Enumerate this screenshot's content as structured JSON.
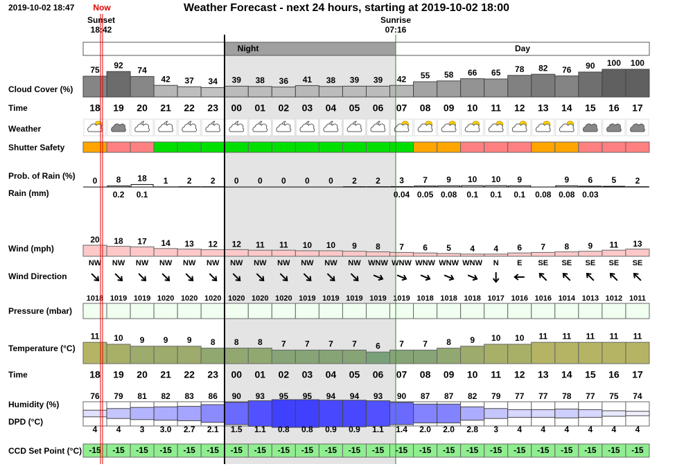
{
  "header": {
    "timestamp": "2019-10-02 18:47",
    "now": "Now",
    "sunset_label": "Sunset",
    "sunset_time": "18:42",
    "title": "Weather Forecast - next 24 hours, starting at 2019-10-02 18:00",
    "sunrise_label": "Sunrise",
    "sunrise_time": "07:16",
    "night": "Night",
    "day": "Day"
  },
  "row_labels": {
    "cloud_cover": "Cloud Cover (%)",
    "time": "Time",
    "weather": "Weather",
    "shutter": "Shutter Safety",
    "rain_prob": "Prob. of Rain (%)",
    "rain_mm": "Rain (mm)",
    "wind": "Wind (mph)",
    "wind_dir": "Wind Direction",
    "pressure": "Pressure (mbar)",
    "temperature": "Temperature (°C)",
    "humidity": "Humidity (%)",
    "dpd": "DPD (°C)",
    "ccd": "CCD Set Point (°C)"
  },
  "hours": [
    "18",
    "19",
    "20",
    "21",
    "22",
    "23",
    "00",
    "01",
    "02",
    "03",
    "04",
    "05",
    "06",
    "07",
    "08",
    "09",
    "10",
    "11",
    "12",
    "13",
    "14",
    "15",
    "16",
    "17"
  ],
  "cloud_cover": [
    75,
    92,
    74,
    42,
    37,
    34,
    39,
    38,
    36,
    41,
    38,
    39,
    39,
    42,
    55,
    58,
    66,
    65,
    78,
    82,
    76,
    90,
    100,
    100
  ],
  "shutter_colors": [
    "#ffa500",
    "#ff8080",
    "#ff8080",
    "#00e000",
    "#00e000",
    "#00e000",
    "#00e000",
    "#00e000",
    "#00e000",
    "#00e000",
    "#00e000",
    "#00e000",
    "#00e000",
    "#00e000",
    "#ffa500",
    "#ffa500",
    "#ff8080",
    "#ff8080",
    "#ff8080",
    "#ffa500",
    "#ffa500",
    "#ff8080",
    "#ff8080",
    "#ff8080"
  ],
  "rain_prob": [
    0,
    8,
    18,
    1,
    2,
    2,
    0,
    0,
    0,
    0,
    0,
    2,
    2,
    3,
    7,
    9,
    10,
    10,
    9,
    null,
    9,
    6,
    5,
    2
  ],
  "rain_mm": [
    null,
    0.2,
    0.1,
    null,
    null,
    null,
    null,
    null,
    null,
    null,
    null,
    null,
    null,
    0.04,
    0.05,
    0.08,
    0.1,
    0.1,
    0.1,
    0.08,
    0.08,
    0.03,
    null,
    null
  ],
  "wind": [
    20,
    18,
    17,
    14,
    13,
    12,
    12,
    11,
    11,
    10,
    10,
    9,
    8,
    7,
    6,
    5,
    4,
    4,
    6,
    7,
    8,
    9,
    11,
    13
  ],
  "wind_dir": [
    "NW",
    "NW",
    "NW",
    "NW",
    "NW",
    "NW",
    "NW",
    "NW",
    "NW",
    "NW",
    "NW",
    "NW",
    "WNW",
    "WNW",
    "WNW",
    "WNW",
    "WNW",
    "N",
    "E",
    "SE",
    "SE",
    "SE",
    "SE",
    "SE"
  ],
  "pressure": [
    1018,
    1019,
    1019,
    1020,
    1020,
    1020,
    1020,
    1020,
    1020,
    1019,
    1019,
    1019,
    1019,
    1019,
    1018,
    1018,
    1018,
    1017,
    1016,
    1016,
    1014,
    1013,
    1012,
    1011
  ],
  "temperature": [
    11,
    10,
    9,
    9,
    9,
    8,
    8,
    8,
    7,
    7,
    7,
    7,
    6,
    7,
    7,
    8,
    9,
    10,
    10,
    11,
    11,
    11,
    11,
    11
  ],
  "humidity": [
    76,
    79,
    81,
    82,
    83,
    86,
    90,
    93,
    95,
    95,
    94,
    94,
    93,
    90,
    87,
    87,
    82,
    79,
    77,
    77,
    78,
    77,
    75,
    74
  ],
  "dpd": {
    "values": [
      4,
      4,
      3,
      3,
      2.7,
      2.1,
      1.5,
      1.1,
      0.8,
      0.8,
      0.9,
      0.9,
      1.1,
      1.4,
      2,
      2,
      2.8,
      3,
      4,
      4,
      4,
      4,
      4,
      4
    ],
    "value_labels": [
      "4",
      "4",
      "3",
      "3.0",
      "2.7",
      "2.1",
      "1.5",
      "1.1",
      "0.8",
      "0.8",
      "0.9",
      "0.9",
      "1.1",
      "1.4",
      "2.0",
      "2.0",
      "2.8",
      "3",
      "4",
      "4",
      "4",
      "4",
      "4",
      "4"
    ]
  },
  "ccd": [
    -15,
    -15,
    -15,
    -15,
    -15,
    -15,
    -15,
    -15,
    -15,
    -15,
    -15,
    -15,
    -15,
    -15,
    -15,
    -15,
    -15,
    -15,
    -15,
    -15,
    -15,
    -15,
    -15,
    -15
  ]
}
